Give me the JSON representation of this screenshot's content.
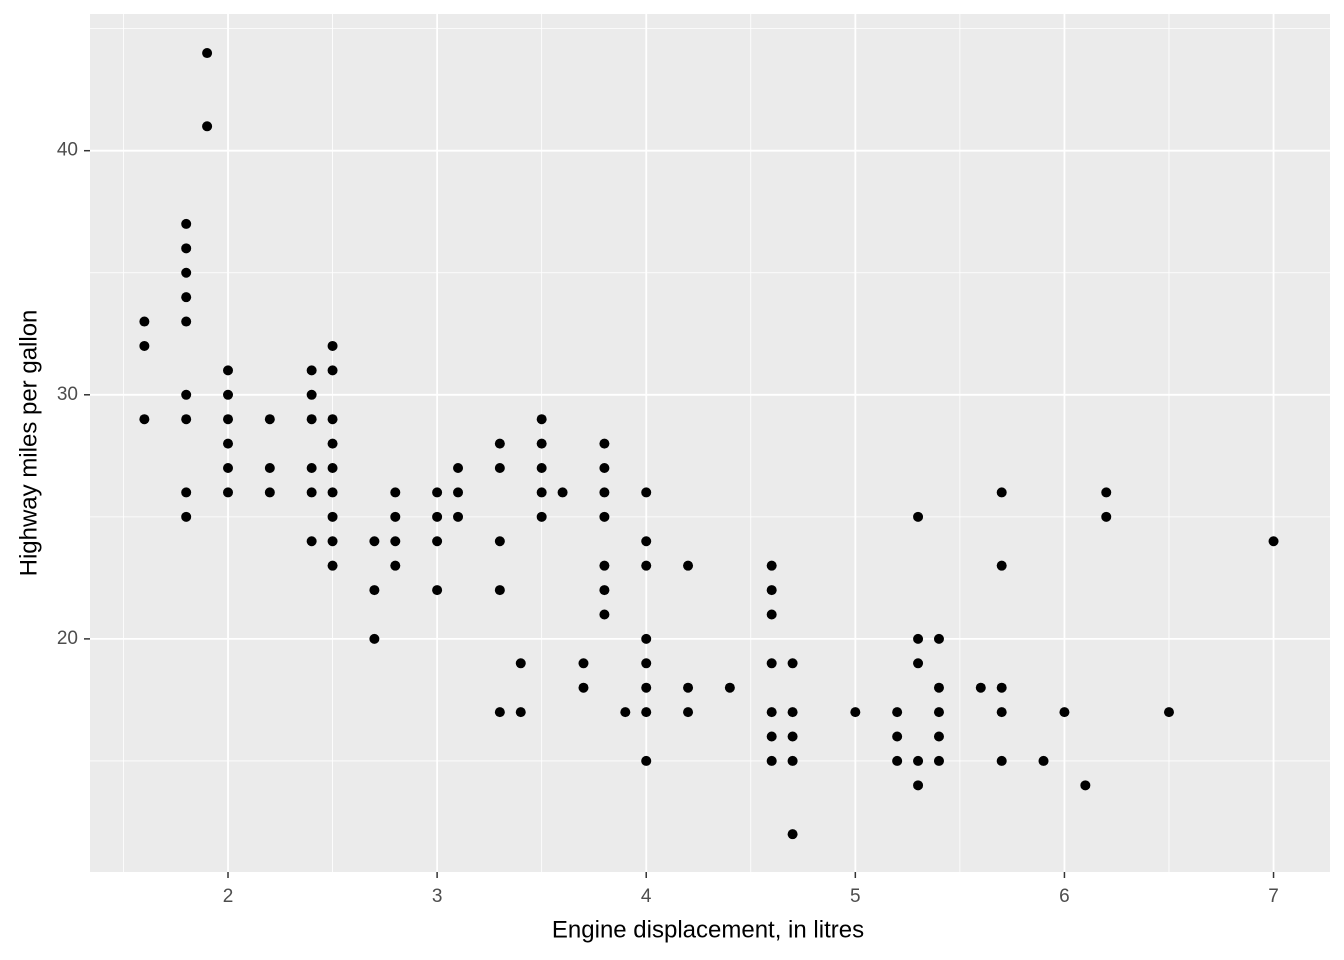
{
  "chart_data": {
    "type": "scatter",
    "x_label": "Engine displacement, in litres",
    "y_label": "Highway miles per gallon",
    "xlim": [
      1.34,
      7.27
    ],
    "ylim": [
      10.45,
      45.6
    ],
    "xticks": [
      2,
      3,
      4,
      5,
      6,
      7
    ],
    "yticks": [
      20,
      30,
      40
    ],
    "x_minor_ticks": [
      1.5,
      2.5,
      3.5,
      4.5,
      5.5,
      6.5
    ],
    "y_minor_ticks": [
      15,
      25,
      35,
      45
    ],
    "grid": true,
    "series": [
      {
        "color": "#000000",
        "x": [
          1.6,
          1.6,
          1.6,
          1.8,
          1.8,
          1.8,
          1.8,
          1.8,
          1.8,
          1.8,
          1.8,
          1.8,
          1.9,
          1.9,
          2.0,
          2.0,
          2.0,
          2.0,
          2.0,
          2.0,
          2.2,
          2.2,
          2.2,
          2.4,
          2.4,
          2.4,
          2.4,
          2.4,
          2.4,
          2.5,
          2.5,
          2.5,
          2.5,
          2.5,
          2.5,
          2.5,
          2.5,
          2.5,
          2.7,
          2.7,
          2.7,
          2.8,
          2.8,
          2.8,
          2.8,
          3.0,
          3.0,
          3.0,
          3.0,
          3.1,
          3.1,
          3.1,
          3.3,
          3.3,
          3.3,
          3.3,
          3.3,
          3.4,
          3.4,
          3.5,
          3.5,
          3.5,
          3.5,
          3.5,
          3.6,
          3.7,
          3.7,
          3.8,
          3.8,
          3.8,
          3.8,
          3.8,
          3.8,
          3.8,
          3.9,
          4.0,
          4.0,
          4.0,
          4.0,
          4.0,
          4.0,
          4.0,
          4.0,
          4.2,
          4.2,
          4.2,
          4.4,
          4.6,
          4.6,
          4.6,
          4.6,
          4.6,
          4.6,
          4.6,
          4.7,
          4.7,
          4.7,
          4.7,
          4.7,
          5.0,
          5.2,
          5.2,
          5.2,
          5.3,
          5.3,
          5.3,
          5.3,
          5.3,
          5.4,
          5.4,
          5.4,
          5.4,
          5.4,
          5.6,
          5.7,
          5.7,
          5.7,
          5.7,
          5.7,
          5.9,
          6.0,
          6.1,
          6.2,
          6.2,
          6.5,
          7.0
        ],
        "y": [
          33,
          32,
          29,
          37,
          36,
          35,
          34,
          33,
          30,
          29,
          26,
          25,
          44,
          41,
          31,
          30,
          29,
          28,
          27,
          26,
          29,
          27,
          26,
          31,
          30,
          29,
          27,
          26,
          24,
          32,
          31,
          29,
          28,
          27,
          26,
          25,
          24,
          23,
          24,
          22,
          20,
          26,
          25,
          24,
          23,
          26,
          25,
          24,
          22,
          27,
          26,
          25,
          28,
          27,
          24,
          22,
          17,
          19,
          17,
          29,
          28,
          27,
          26,
          25,
          26,
          19,
          18,
          28,
          27,
          26,
          25,
          23,
          22,
          21,
          17,
          26,
          24,
          23,
          20,
          19,
          18,
          17,
          15,
          23,
          18,
          17,
          18,
          23,
          22,
          21,
          19,
          17,
          16,
          15,
          19,
          17,
          16,
          15,
          12,
          17,
          17,
          16,
          15,
          25,
          20,
          19,
          15,
          14,
          20,
          18,
          17,
          16,
          15,
          18,
          26,
          23,
          18,
          17,
          15,
          15,
          17,
          14,
          26,
          25,
          17,
          24
        ]
      }
    ]
  }
}
